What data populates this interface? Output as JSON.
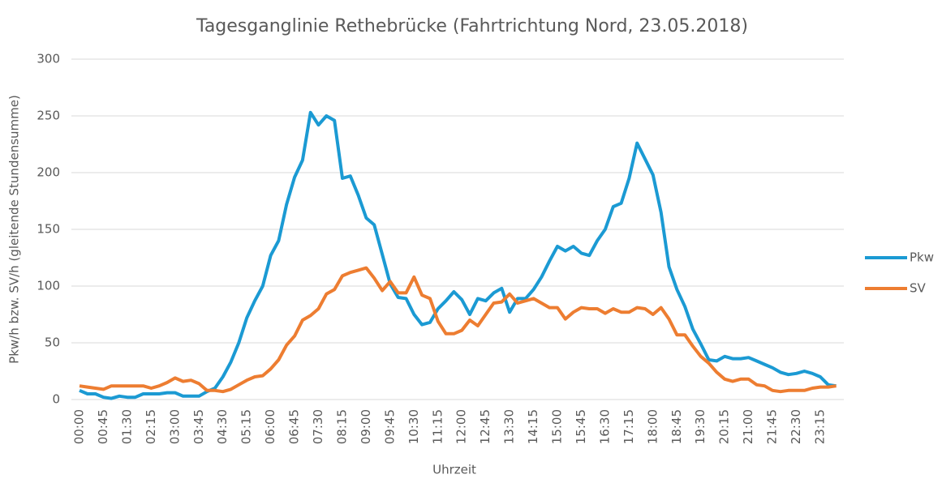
{
  "chart_data": {
    "type": "line",
    "title": "Tagesganglinie Rethebrücke (Fahrtrichtung Nord, 23.05.2018)",
    "x_label": "Uhrzeit",
    "y_label": "Pkw/h bzw. SV/h (gleitende Stundensumme)",
    "categories": [
      "00:00",
      null,
      null,
      "00:45",
      null,
      null,
      "01:30",
      null,
      null,
      "02:15",
      null,
      null,
      "03:00",
      null,
      null,
      "03:45",
      null,
      null,
      "04:30",
      null,
      null,
      "05:15",
      null,
      null,
      "06:00",
      null,
      null,
      "06:45",
      null,
      null,
      "07:30",
      null,
      null,
      "08:15",
      null,
      null,
      "09:00",
      null,
      null,
      "09:45",
      null,
      null,
      "10:30",
      null,
      null,
      "11:15",
      null,
      null,
      "12:00",
      null,
      null,
      "12:45",
      null,
      null,
      "13:30",
      null,
      null,
      "14:15",
      null,
      null,
      "15:00",
      null,
      null,
      "15:45",
      null,
      null,
      "16:30",
      null,
      null,
      "17:15",
      null,
      null,
      "18:00",
      null,
      null,
      "18:45",
      null,
      null,
      "19:30",
      null,
      null,
      "20:15",
      null,
      null,
      "21:00",
      null,
      null,
      "21:45",
      null,
      null,
      "22:30",
      null,
      null,
      "23:15",
      null,
      null
    ],
    "series": [
      {
        "name": "Pkw",
        "color": "#1b9ad3",
        "values": [
          8,
          5,
          5,
          2,
          1,
          3,
          2,
          2,
          5,
          5,
          5,
          6,
          6,
          3,
          3,
          3,
          7,
          10,
          20,
          33,
          50,
          72,
          87,
          100,
          127,
          140,
          172,
          196,
          211,
          253,
          242,
          250,
          246,
          195,
          197,
          180,
          160,
          154,
          128,
          102,
          90,
          89,
          75,
          66,
          68,
          80,
          87,
          95,
          88,
          75,
          89,
          87,
          94,
          98,
          77,
          89,
          89,
          97,
          108,
          122,
          135,
          131,
          135,
          129,
          127,
          140,
          150,
          170,
          173,
          195,
          226,
          212,
          198,
          165,
          117,
          97,
          82,
          62,
          49,
          35,
          34,
          38,
          36,
          36,
          37,
          34,
          31,
          28,
          24,
          22,
          23,
          25,
          23,
          20,
          13,
          12
        ]
      },
      {
        "name": "SV",
        "color": "#ed7d31",
        "values": [
          12,
          11,
          10,
          9,
          12,
          12,
          12,
          12,
          12,
          10,
          12,
          15,
          19,
          16,
          17,
          14,
          8,
          8,
          7,
          9,
          13,
          17,
          20,
          21,
          27,
          35,
          48,
          56,
          70,
          74,
          80,
          93,
          97,
          109,
          112,
          114,
          116,
          107,
          96,
          104,
          94,
          94,
          108,
          92,
          89,
          69,
          58,
          58,
          61,
          70,
          65,
          75,
          85,
          86,
          93,
          85,
          87,
          89,
          85,
          81,
          81,
          71,
          77,
          81,
          80,
          80,
          76,
          80,
          77,
          77,
          81,
          80,
          75,
          81,
          71,
          57,
          57,
          47,
          38,
          32,
          24,
          18,
          16,
          18,
          18,
          13,
          12,
          8,
          7,
          8,
          8,
          8,
          10,
          11,
          11,
          12
        ]
      }
    ],
    "ylim": [
      0,
      300
    ],
    "yticks": [
      0,
      50,
      100,
      150,
      200,
      250,
      300
    ],
    "grid": true,
    "legend": "right"
  }
}
